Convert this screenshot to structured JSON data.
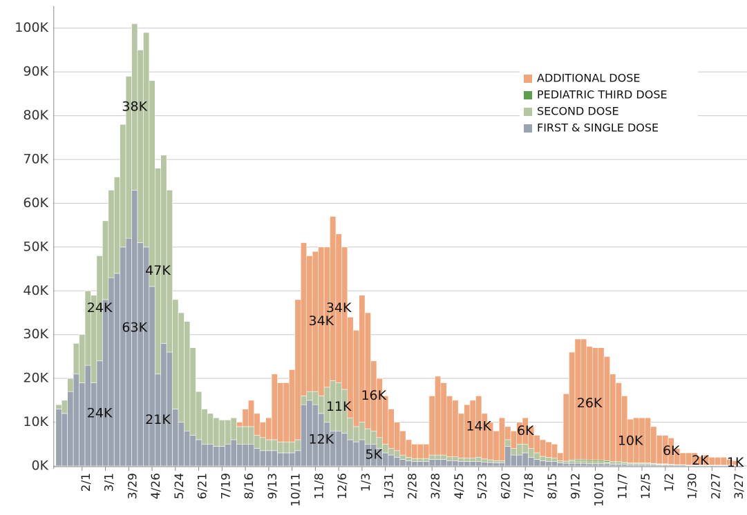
{
  "chart_data": {
    "type": "stacked_bar",
    "categories": [
      null,
      null,
      null,
      null,
      "2/1",
      null,
      null,
      null,
      "3/1",
      null,
      null,
      null,
      "3/29",
      null,
      null,
      null,
      "4/26",
      null,
      null,
      null,
      "5/24",
      null,
      null,
      null,
      "6/21",
      null,
      null,
      null,
      "7/19",
      null,
      null,
      null,
      "8/16",
      null,
      null,
      null,
      "9/13",
      null,
      null,
      null,
      "10/11",
      null,
      null,
      null,
      "11/8",
      null,
      null,
      null,
      "12/6",
      null,
      null,
      null,
      "1/3",
      null,
      null,
      null,
      "1/31",
      null,
      null,
      null,
      "2/28",
      null,
      null,
      null,
      "3/28",
      null,
      null,
      null,
      "4/25",
      null,
      null,
      null,
      "5/23",
      null,
      null,
      null,
      "6/20",
      null,
      null,
      null,
      "7/18",
      null,
      null,
      null,
      "8/15",
      null,
      null,
      null,
      "9/12",
      null,
      null,
      null,
      "10/10",
      null,
      null,
      null,
      "11/7",
      null,
      null,
      null,
      "12/5",
      null,
      null,
      null,
      "1/2",
      null,
      null,
      null,
      "1/30",
      null,
      null,
      null,
      "2/27",
      null,
      null,
      null,
      "3/27"
    ],
    "series": [
      {
        "name": "FIRST & SINGLE DOSE",
        "color": "#9ba3b0",
        "values": [
          13000,
          12000,
          17000,
          21000,
          19000,
          23000,
          19000,
          24000,
          38000,
          43000,
          44000,
          50000,
          52000,
          63000,
          51000,
          50000,
          41000,
          21000,
          28000,
          26000,
          13000,
          10000,
          8000,
          7000,
          6000,
          5000,
          5000,
          4500,
          4500,
          5000,
          6000,
          5000,
          5000,
          5000,
          4000,
          3500,
          3500,
          3500,
          3000,
          3000,
          3000,
          3500,
          14000,
          15000,
          14000,
          12000,
          10000,
          8000,
          8000,
          7500,
          6000,
          5500,
          6000,
          5000,
          5000,
          4000,
          3000,
          2500,
          2000,
          1500,
          1200,
          1000,
          1000,
          1000,
          1500,
          1500,
          1500,
          1200,
          1200,
          1000,
          1000,
          1000,
          1000,
          900,
          800,
          700,
          700,
          4500,
          2500,
          2500,
          3000,
          2000,
          1500,
          1200,
          1000,
          1000,
          700,
          600,
          600,
          600,
          600,
          500,
          500,
          500,
          500,
          400,
          400,
          400,
          300,
          300,
          300,
          300,
          300,
          200,
          200,
          200,
          200,
          200,
          100,
          100,
          100,
          100,
          100,
          100,
          100,
          100,
          100
        ],
        "value_labels": [
          null,
          null,
          null,
          null,
          null,
          null,
          null,
          "24K",
          null,
          null,
          null,
          null,
          null,
          "63K",
          null,
          null,
          null,
          "21K",
          null,
          null,
          null,
          null,
          null,
          null,
          null,
          null,
          null,
          null,
          null,
          null,
          null,
          null,
          null,
          null,
          null,
          null,
          null,
          null,
          null,
          null,
          null,
          null,
          null,
          null,
          null,
          "12K",
          null,
          null,
          null,
          null,
          null,
          null,
          null,
          null,
          "5K",
          null,
          null,
          null,
          null,
          null,
          null,
          null,
          null,
          null,
          null,
          null,
          null,
          null,
          null,
          null,
          null,
          null,
          null,
          null,
          null,
          null,
          null,
          null,
          null,
          null,
          null,
          null,
          null,
          null,
          null,
          null,
          null,
          null,
          null,
          null,
          null,
          null,
          null,
          null,
          null,
          null,
          null,
          null,
          null,
          null,
          null,
          null,
          null,
          null,
          null,
          null,
          null,
          null,
          null,
          null,
          null,
          null,
          null,
          null,
          null,
          null,
          null
        ]
      },
      {
        "name": "SECOND DOSE",
        "color": "#b6c6a2",
        "values": [
          1000,
          3000,
          3000,
          7000,
          11000,
          17000,
          20000,
          24000,
          18000,
          20000,
          22000,
          28000,
          37000,
          38000,
          44000,
          49000,
          47000,
          47000,
          43000,
          37000,
          25000,
          25000,
          25000,
          20000,
          11000,
          8000,
          7000,
          6500,
          6000,
          5500,
          5000,
          4000,
          4000,
          4000,
          3000,
          3000,
          2500,
          2500,
          2500,
          2500,
          2500,
          2500,
          2000,
          2000,
          3000,
          4000,
          8000,
          11500,
          11000,
          10000,
          5000,
          3500,
          4000,
          3500,
          3000,
          2500,
          2000,
          1500,
          1500,
          1000,
          800,
          700,
          700,
          700,
          1000,
          1000,
          1000,
          900,
          900,
          800,
          800,
          800,
          1000,
          700,
          600,
          500,
          500,
          1500,
          1500,
          2500,
          2000,
          2000,
          1500,
          1000,
          1000,
          800,
          500,
          500,
          600,
          600,
          600,
          500,
          500,
          500,
          400,
          400,
          400,
          300,
          300,
          300,
          300,
          300,
          200,
          200,
          200,
          200,
          100,
          100,
          100,
          100,
          100,
          100,
          100,
          100,
          100,
          100,
          100
        ],
        "value_labels": [
          null,
          null,
          null,
          null,
          null,
          null,
          null,
          "24K",
          null,
          null,
          null,
          null,
          null,
          "38K",
          null,
          null,
          null,
          "47K",
          null,
          null,
          null,
          null,
          null,
          null,
          null,
          null,
          null,
          null,
          null,
          null,
          null,
          null,
          null,
          null,
          null,
          null,
          null,
          null,
          null,
          null,
          null,
          null,
          null,
          null,
          null,
          null,
          null,
          null,
          "11K",
          null,
          null,
          null,
          null,
          null,
          null,
          null,
          null,
          null,
          null,
          null,
          null,
          null,
          null,
          null,
          null,
          null,
          null,
          null,
          null,
          null,
          null,
          null,
          null,
          null,
          null,
          null,
          null,
          null,
          null,
          null,
          null,
          null,
          null,
          null,
          null,
          null,
          null,
          null,
          null,
          null,
          null,
          null,
          null,
          null,
          null,
          null,
          null,
          null,
          null,
          null,
          null,
          null,
          null,
          null,
          null,
          null,
          null,
          null,
          null,
          null,
          null,
          null,
          null,
          null,
          null,
          null,
          null
        ]
      },
      {
        "name": "PEDIATRIC THIRD DOSE",
        "color": "#5a9e4e",
        "values": [
          0,
          0,
          0,
          0,
          0,
          0,
          0,
          0,
          0,
          0,
          0,
          0,
          0,
          0,
          0,
          0,
          0,
          0,
          0,
          0,
          0,
          0,
          0,
          0,
          0,
          0,
          0,
          0,
          0,
          0,
          0,
          0,
          0,
          0,
          0,
          0,
          0,
          0,
          0,
          0,
          0,
          0,
          0,
          0,
          0,
          0,
          0,
          0,
          0,
          0,
          0,
          0,
          0,
          0,
          0,
          0,
          0,
          0,
          0,
          0,
          0,
          0,
          0,
          0,
          0,
          0,
          0,
          0,
          0,
          0,
          0,
          0,
          0,
          0,
          0,
          0,
          0,
          0,
          0,
          0,
          0,
          0,
          0,
          0,
          0,
          0,
          0,
          0,
          200,
          300,
          300,
          300,
          300,
          300,
          300,
          200,
          200,
          200,
          100,
          100,
          100,
          100,
          100,
          100,
          100,
          0,
          0,
          0,
          0,
          0,
          0,
          0,
          0,
          0,
          0,
          0,
          0
        ]
      },
      {
        "name": "ADDITIONAL DOSE",
        "color": "#f1a57a",
        "values": [
          0,
          0,
          0,
          0,
          0,
          0,
          0,
          0,
          0,
          0,
          0,
          0,
          0,
          0,
          0,
          0,
          0,
          0,
          0,
          0,
          0,
          0,
          0,
          0,
          0,
          0,
          0,
          0,
          0,
          0,
          0,
          1000,
          4000,
          6000,
          5000,
          3500,
          5000,
          15000,
          13500,
          13500,
          16500,
          32000,
          35000,
          31000,
          32000,
          34000,
          32000,
          37500,
          34000,
          32500,
          23000,
          22000,
          29000,
          26500,
          16000,
          13500,
          11000,
          9000,
          6500,
          5500,
          4000,
          3300,
          3300,
          3300,
          13500,
          18000,
          16500,
          13900,
          12900,
          10200,
          12200,
          13200,
          14000,
          10400,
          8600,
          6800,
          9800,
          3000,
          4000,
          5000,
          6000,
          5000,
          4000,
          3800,
          3500,
          3200,
          1800,
          15400,
          24600,
          27500,
          27500,
          26000,
          25700,
          25700,
          23800,
          20000,
          18000,
          15100,
          10000,
          10300,
          10300,
          10300,
          8400,
          6500,
          6500,
          6000,
          3700,
          2700,
          2800,
          2800,
          2000,
          2300,
          1800,
          1800,
          1800,
          1300,
          1000
        ],
        "value_labels": [
          null,
          null,
          null,
          null,
          null,
          null,
          null,
          null,
          null,
          null,
          null,
          null,
          null,
          null,
          null,
          null,
          null,
          null,
          null,
          null,
          null,
          null,
          null,
          null,
          null,
          null,
          null,
          null,
          null,
          null,
          null,
          null,
          null,
          null,
          null,
          null,
          null,
          null,
          null,
          null,
          null,
          null,
          null,
          null,
          null,
          "34K",
          null,
          null,
          "34K",
          null,
          null,
          null,
          null,
          null,
          "16K",
          null,
          null,
          null,
          null,
          null,
          null,
          null,
          null,
          null,
          null,
          null,
          null,
          null,
          null,
          null,
          null,
          null,
          "14K",
          null,
          null,
          null,
          null,
          null,
          null,
          null,
          "6K",
          null,
          null,
          null,
          null,
          null,
          null,
          null,
          null,
          null,
          null,
          "26K",
          null,
          null,
          null,
          null,
          null,
          null,
          "10K",
          null,
          null,
          null,
          null,
          null,
          null,
          "6K",
          null,
          null,
          null,
          null,
          "2K",
          null,
          null,
          null,
          null,
          null,
          "1K"
        ]
      }
    ],
    "ylim": [
      0,
      105000
    ],
    "yticks": [
      {
        "value": 0,
        "label": "0K"
      },
      {
        "value": 10000,
        "label": "10K"
      },
      {
        "value": 20000,
        "label": "20K"
      },
      {
        "value": 30000,
        "label": "30K"
      },
      {
        "value": 40000,
        "label": "40K"
      },
      {
        "value": 50000,
        "label": "50K"
      },
      {
        "value": 60000,
        "label": "60K"
      },
      {
        "value": 70000,
        "label": "70K"
      },
      {
        "value": 80000,
        "label": "80K"
      },
      {
        "value": 90000,
        "label": "90K"
      },
      {
        "value": 100000,
        "label": "100K"
      }
    ],
    "grid": true,
    "legend": "upper right"
  }
}
